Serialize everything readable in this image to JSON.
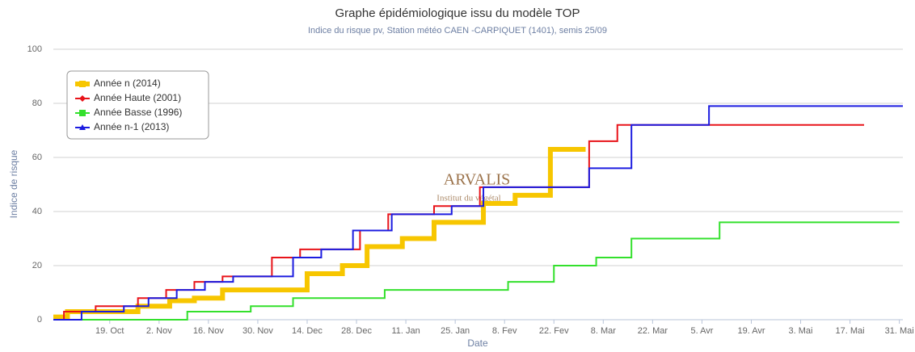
{
  "chart_data": {
    "type": "step",
    "title": "Graphe épidémiologique issu du modèle TOP",
    "subtitle": "Indice du risque pv, Station météo CAEN -CARPIQUET (1401), semis 25/09",
    "xlabel": "Date",
    "ylabel": "Indice de risque",
    "watermark": "ARVALIS",
    "watermark_sub": "Institut du végétal",
    "xlim": [
      "10-03",
      "06-01"
    ],
    "xticks": [
      {
        "value": "10-19",
        "label": "19. Oct"
      },
      {
        "value": "11-02",
        "label": "2. Nov"
      },
      {
        "value": "11-16",
        "label": "16. Nov"
      },
      {
        "value": "11-30",
        "label": "30. Nov"
      },
      {
        "value": "12-14",
        "label": "14. Dec"
      },
      {
        "value": "12-28",
        "label": "28. Dec"
      },
      {
        "value": "01-11",
        "label": "11. Jan"
      },
      {
        "value": "01-25",
        "label": "25. Jan"
      },
      {
        "value": "02-08",
        "label": "8. Fev"
      },
      {
        "value": "02-22",
        "label": "22. Fev"
      },
      {
        "value": "03-08",
        "label": "8. Mar"
      },
      {
        "value": "03-22",
        "label": "22. Mar"
      },
      {
        "value": "04-05",
        "label": "5. Avr"
      },
      {
        "value": "04-19",
        "label": "19. Avr"
      },
      {
        "value": "05-03",
        "label": "3. Mai"
      },
      {
        "value": "05-17",
        "label": "17. Mai"
      },
      {
        "value": "05-31",
        "label": "31. Mai"
      }
    ],
    "ylim": [
      0,
      100
    ],
    "yticks": [
      0,
      20,
      40,
      60,
      80,
      100
    ],
    "grid": true,
    "legend": "upper left",
    "series": [
      {
        "name": "Année n (2014)",
        "color": "#f7c600",
        "marker": "square",
        "width": 6,
        "x": [
          "10-03",
          "10-07",
          "10-27",
          "11-05",
          "11-12",
          "11-20",
          "12-14",
          "12-24",
          "12-31",
          "01-10",
          "01-19",
          "02-02",
          "02-11",
          "02-21",
          "03-03"
        ],
        "values": [
          1,
          3,
          5,
          7,
          8,
          11,
          17,
          20,
          27,
          30,
          36,
          43,
          46,
          63,
          63
        ]
      },
      {
        "name": "Année Haute (2001)",
        "color": "#e8141a",
        "marker": "diamond",
        "width": 2,
        "x": [
          "10-03",
          "10-06",
          "10-15",
          "10-27",
          "11-04",
          "11-12",
          "11-20",
          "12-04",
          "12-12",
          "12-29",
          "01-06",
          "01-19",
          "02-01",
          "03-04",
          "03-12",
          "05-21"
        ],
        "values": [
          0,
          3,
          5,
          8,
          11,
          14,
          16,
          23,
          26,
          33,
          39,
          42,
          49,
          66,
          72,
          72
        ]
      },
      {
        "name": "Année Basse (1996)",
        "color": "#33e02c",
        "marker": "square",
        "width": 2,
        "x": [
          "10-03",
          "11-10",
          "11-28",
          "12-10",
          "01-05",
          "02-09",
          "02-22",
          "03-06",
          "03-16",
          "04-10",
          "05-31"
        ],
        "values": [
          0,
          3,
          5,
          8,
          11,
          14,
          20,
          23,
          30,
          36,
          36
        ]
      },
      {
        "name": "Année n-1 (2013)",
        "color": "#1c1ce0",
        "marker": "triangle",
        "width": 2,
        "x": [
          "10-03",
          "10-11",
          "10-23",
          "10-30",
          "11-07",
          "11-15",
          "11-23",
          "12-10",
          "12-18",
          "12-27",
          "01-07",
          "01-24",
          "02-02",
          "03-04",
          "03-16",
          "04-07",
          "06-01"
        ],
        "values": [
          0,
          3,
          5,
          8,
          11,
          14,
          16,
          23,
          26,
          33,
          39,
          42,
          49,
          56,
          72,
          79,
          79
        ]
      }
    ]
  }
}
